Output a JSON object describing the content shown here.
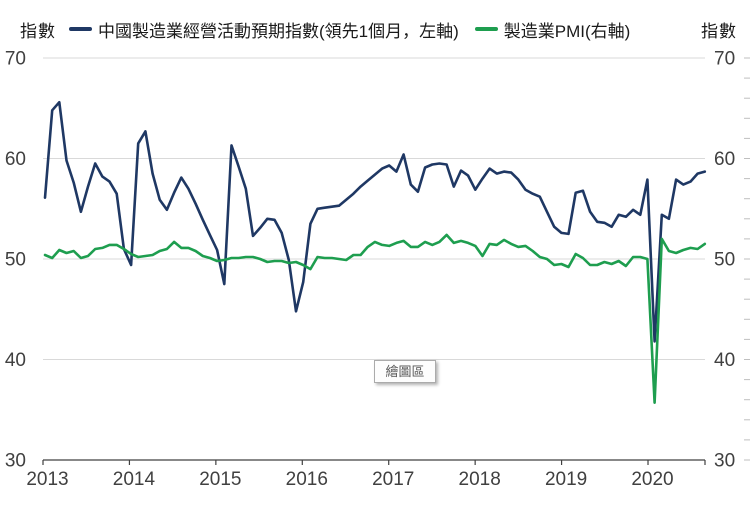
{
  "axis_titles": {
    "left": "指數",
    "right": "指數"
  },
  "legend": {
    "items": [
      {
        "label": "中國製造業經營活動預期指數(領先1個月，左軸)",
        "color": "#1f3864"
      },
      {
        "label": "製造業PMI(右軸)",
        "color": "#1e9e4f"
      }
    ]
  },
  "tooltip": {
    "text": "繪圖區"
  },
  "colors": {
    "expectation_line": "#1f3864",
    "pmi_line": "#1e9e4f",
    "gridline": "#d9d9d9",
    "axis_line": "#404040",
    "tick_label": "#404040",
    "minor_tick": "#bfbfbf"
  },
  "chart_data": {
    "type": "line",
    "title": "",
    "x_monthly_start": "2013-01",
    "x_monthly_end": "2020-09",
    "x_tick_labels": [
      "2013",
      "2014",
      "2015",
      "2016",
      "2017",
      "2018",
      "2019",
      "2020"
    ],
    "y_left": {
      "label": "指數",
      "min": 30,
      "max": 70,
      "ticks": [
        70,
        60,
        50,
        40,
        30
      ]
    },
    "y_right": {
      "label": "指數",
      "min": 30,
      "max": 70,
      "ticks": [
        70,
        60,
        50,
        40,
        30
      ],
      "minor_tick_step": 2
    },
    "grid_values": [
      70,
      60,
      50,
      40
    ],
    "legend_position": "top",
    "series": [
      {
        "name": "中國製造業經營活動預期指數(領先1個月，左軸)",
        "axis": "left",
        "color": "#1f3864",
        "values": [
          56.1,
          64.8,
          65.6,
          59.8,
          57.6,
          54.7,
          57.2,
          59.5,
          58.2,
          57.7,
          56.5,
          51.0,
          49.4,
          61.5,
          62.7,
          58.5,
          55.9,
          54.9,
          56.6,
          58.1,
          57.0,
          55.5,
          53.9,
          52.4,
          50.9,
          47.5,
          61.3,
          59.2,
          57.0,
          52.3,
          53.1,
          54.0,
          53.9,
          52.6,
          49.9,
          44.8,
          47.7,
          53.5,
          55.0,
          55.1,
          55.2,
          55.3,
          55.9,
          56.5,
          57.2,
          57.8,
          58.4,
          59.0,
          59.3,
          58.7,
          60.4,
          57.4,
          56.7,
          59.1,
          59.4,
          59.5,
          59.4,
          57.2,
          58.8,
          58.3,
          56.9,
          58.0,
          59.0,
          58.5,
          58.7,
          58.6,
          57.9,
          56.9,
          56.5,
          56.2,
          54.7,
          53.2,
          52.6,
          52.5,
          56.6,
          56.8,
          54.7,
          53.7,
          53.6,
          53.2,
          54.4,
          54.2,
          54.9,
          54.4,
          57.9,
          41.8,
          54.4,
          54.0,
          57.9,
          57.4,
          57.7,
          58.5,
          58.7
        ]
      },
      {
        "name": "製造業PMI(右軸)",
        "axis": "right",
        "color": "#1e9e4f",
        "values": [
          50.4,
          50.1,
          50.9,
          50.6,
          50.8,
          50.1,
          50.3,
          51.0,
          51.1,
          51.4,
          51.4,
          51.0,
          50.5,
          50.2,
          50.3,
          50.4,
          50.8,
          51.0,
          51.7,
          51.1,
          51.1,
          50.8,
          50.3,
          50.1,
          49.8,
          49.9,
          50.1,
          50.1,
          50.2,
          50.2,
          50.0,
          49.7,
          49.8,
          49.8,
          49.6,
          49.7,
          49.4,
          49.0,
          50.2,
          50.1,
          50.1,
          50.0,
          49.9,
          50.4,
          50.4,
          51.2,
          51.7,
          51.4,
          51.3,
          51.6,
          51.8,
          51.2,
          51.2,
          51.7,
          51.4,
          51.7,
          52.4,
          51.6,
          51.8,
          51.6,
          51.3,
          50.3,
          51.5,
          51.4,
          51.9,
          51.5,
          51.2,
          51.3,
          50.8,
          50.2,
          50.0,
          49.4,
          49.5,
          49.2,
          50.5,
          50.1,
          49.4,
          49.4,
          49.7,
          49.5,
          49.8,
          49.3,
          50.2,
          50.2,
          50.0,
          35.7,
          52.0,
          50.8,
          50.6,
          50.9,
          51.1,
          51.0,
          51.5
        ]
      }
    ]
  }
}
